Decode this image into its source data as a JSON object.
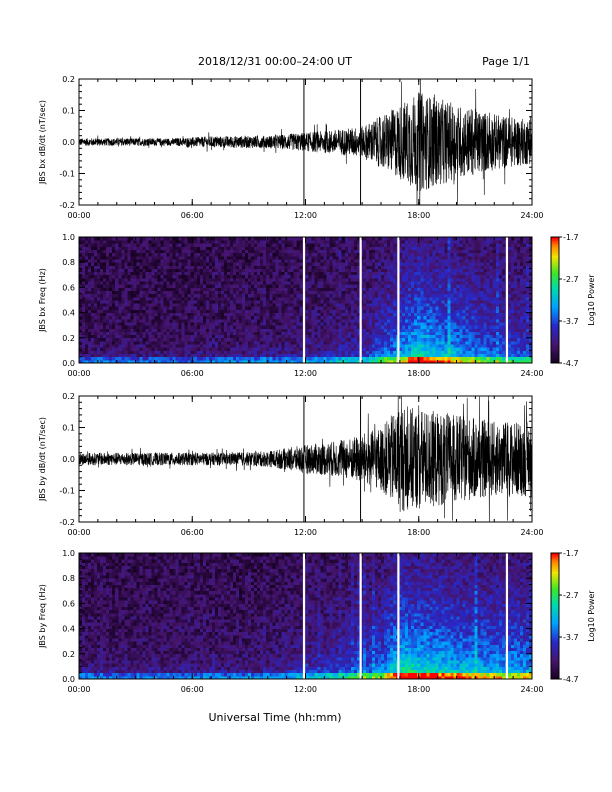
{
  "header": {
    "title": "2018/12/31   00:00–24:00 UT",
    "page": "Page 1/1"
  },
  "footer": {
    "xlabel": "Universal Time (hh:mm)"
  },
  "chart_data": [
    {
      "type": "line",
      "ylabel": "JBS bx dB/dt (nT/sec)",
      "xlim": [
        "00:00",
        "24:00"
      ],
      "ylim": [
        -0.2,
        0.2
      ],
      "x_ticks": [
        "00:00",
        "06:00",
        "12:00",
        "18:00",
        "24:00"
      ],
      "y_ticks": [
        "-0.2",
        "-0.1",
        "0.0",
        "0.1",
        "0.2"
      ],
      "vertical_markers": [
        "11:55",
        "14:55"
      ],
      "amplitude_envelope": [
        {
          "t": "00:00",
          "amp": 0.012
        },
        {
          "t": "05:00",
          "amp": 0.012
        },
        {
          "t": "07:00",
          "amp": 0.018
        },
        {
          "t": "10:00",
          "amp": 0.02
        },
        {
          "t": "13:00",
          "amp": 0.035
        },
        {
          "t": "15:00",
          "amp": 0.05
        },
        {
          "t": "16:30",
          "amp": 0.1
        },
        {
          "t": "18:00",
          "amp": 0.16
        },
        {
          "t": "20:00",
          "amp": 0.12
        },
        {
          "t": "22:00",
          "amp": 0.09
        },
        {
          "t": "24:00",
          "amp": 0.07
        }
      ]
    },
    {
      "type": "heatmap",
      "ylabel": "JBS bx Freq (Hz)",
      "xlim": [
        "00:00",
        "24:00"
      ],
      "ylim": [
        0.0,
        1.0
      ],
      "x_ticks": [
        "00:00",
        "06:00",
        "12:00",
        "18:00",
        "24:00"
      ],
      "y_ticks": [
        "0.0",
        "0.2",
        "0.4",
        "0.6",
        "0.8",
        "1.0"
      ],
      "colorbar": {
        "label": "Log10 Power",
        "range": [
          -4.7,
          -1.7
        ],
        "ticks": [
          "-1.7",
          "-2.7",
          "-3.7",
          "-4.7"
        ]
      },
      "data_gaps": [
        "11:55",
        "14:55",
        "16:55",
        "22:40"
      ]
    },
    {
      "type": "line",
      "ylabel": "JBS by dB/dt (nT/sec)",
      "xlim": [
        "00:00",
        "24:00"
      ],
      "ylim": [
        -0.2,
        0.2
      ],
      "x_ticks": [
        "00:00",
        "06:00",
        "12:00",
        "18:00",
        "24:00"
      ],
      "y_ticks": [
        "-0.2",
        "-0.1",
        "0.0",
        "0.1",
        "0.2"
      ],
      "vertical_markers": [
        "11:55",
        "14:55"
      ],
      "amplitude_envelope": [
        {
          "t": "00:00",
          "amp": 0.02
        },
        {
          "t": "05:00",
          "amp": 0.02
        },
        {
          "t": "08:00",
          "amp": 0.02
        },
        {
          "t": "10:00",
          "amp": 0.025
        },
        {
          "t": "12:00",
          "amp": 0.045
        },
        {
          "t": "14:00",
          "amp": 0.06
        },
        {
          "t": "16:00",
          "amp": 0.1
        },
        {
          "t": "17:00",
          "amp": 0.17
        },
        {
          "t": "19:00",
          "amp": 0.15
        },
        {
          "t": "22:00",
          "amp": 0.12
        },
        {
          "t": "24:00",
          "amp": 0.12
        }
      ]
    },
    {
      "type": "heatmap",
      "ylabel": "JBS by Freq (Hz)",
      "xlim": [
        "00:00",
        "24:00"
      ],
      "ylim": [
        0.0,
        1.0
      ],
      "x_ticks": [
        "00:00",
        "06:00",
        "12:00",
        "18:00",
        "24:00"
      ],
      "y_ticks": [
        "0.0",
        "0.2",
        "0.4",
        "0.6",
        "0.8",
        "1.0"
      ],
      "colorbar": {
        "label": "Log10 Power",
        "range": [
          -4.7,
          -1.7
        ],
        "ticks": [
          "-1.7",
          "-2.7",
          "-3.7",
          "-4.7"
        ]
      },
      "data_gaps": [
        "11:55",
        "14:55",
        "16:55",
        "22:40"
      ]
    }
  ]
}
